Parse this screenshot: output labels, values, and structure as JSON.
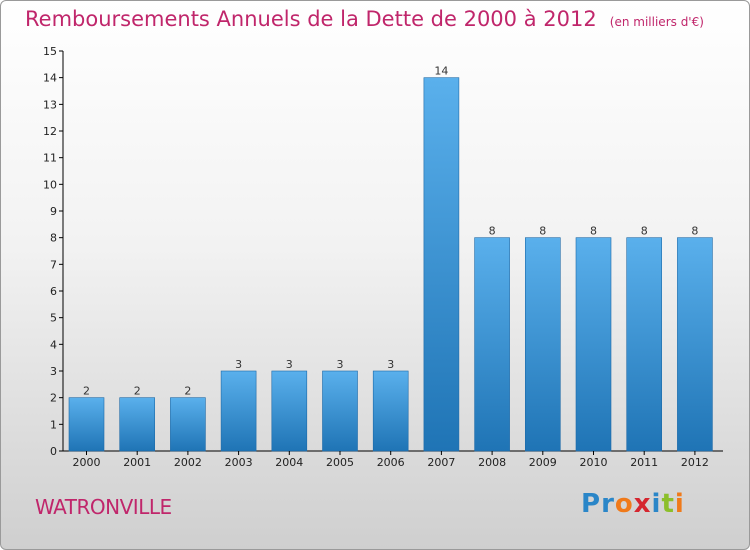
{
  "title": "Remboursements Annuels de la Dette de 2000 à 2012",
  "subtitle": "(en milliers d'€)",
  "commune": "WATRONVILLE",
  "logo": {
    "text": "Proxiti",
    "letters": [
      "P",
      "r",
      "o",
      "x",
      "i",
      "t",
      "i"
    ],
    "colors": [
      "#2a86c8",
      "#2a86c8",
      "#f07a1a",
      "#d5262f",
      "#2a86c8",
      "#8cbf2a",
      "#f07a1a"
    ]
  },
  "colors": {
    "accent": "#c0266b",
    "bar_light": "#5ab0ec",
    "bar_dark": "#1f74b5",
    "axis": "#000000"
  },
  "chart_data": {
    "type": "bar",
    "title": "Remboursements Annuels de la Dette de 2000 à 2012",
    "subtitle": "(en milliers d'€)",
    "categories": [
      "2000",
      "2001",
      "2002",
      "2003",
      "2004",
      "2005",
      "2006",
      "2007",
      "2008",
      "2009",
      "2010",
      "2011",
      "2012"
    ],
    "values": [
      2,
      2,
      2,
      3,
      3,
      3,
      3,
      14,
      8,
      8,
      8,
      8,
      8
    ],
    "data_labels": [
      "2",
      "2",
      "2",
      "3",
      "3",
      "3",
      "3",
      "14",
      "8",
      "8",
      "8",
      "8",
      "8"
    ],
    "ylim": [
      0,
      15
    ],
    "y_ticks": [
      "0",
      "1",
      "2",
      "3",
      "4",
      "5",
      "6",
      "7",
      "8",
      "9",
      "10",
      "11",
      "12",
      "13",
      "14",
      "15"
    ],
    "grid": false,
    "legend": "none"
  }
}
